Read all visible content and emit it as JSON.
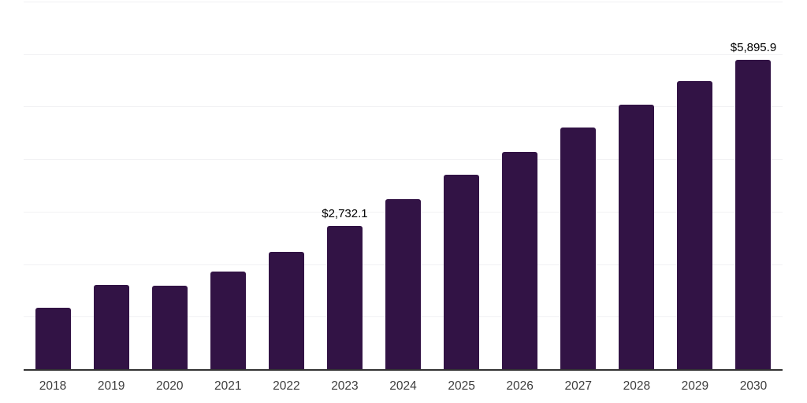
{
  "chart_data": {
    "type": "bar",
    "title": "",
    "xlabel": "",
    "ylabel": "",
    "categories": [
      "2018",
      "2019",
      "2020",
      "2021",
      "2022",
      "2023",
      "2024",
      "2025",
      "2026",
      "2027",
      "2028",
      "2029",
      "2030"
    ],
    "values": [
      1170,
      1610,
      1590,
      1860,
      2230,
      2732.1,
      3240,
      3710,
      4140,
      4600,
      5040,
      5480,
      5895.9
    ],
    "point_labels": [
      "",
      "",
      "",
      "",
      "",
      "$2,732.1",
      "",
      "",
      "",
      "",
      "",
      "",
      "$5,895.9"
    ],
    "ylim": [
      0,
      7000
    ],
    "gridline_interval": 1000,
    "grid": "horizontal-only",
    "legend": "none",
    "y_tick_labels_visible": false,
    "colors": {
      "bar": "#321345",
      "axis_line": "#333333",
      "gridline": "#f1f1f3",
      "value_label": "#000000",
      "tick_label": "#3d3d3d",
      "background": "#ffffff"
    }
  }
}
